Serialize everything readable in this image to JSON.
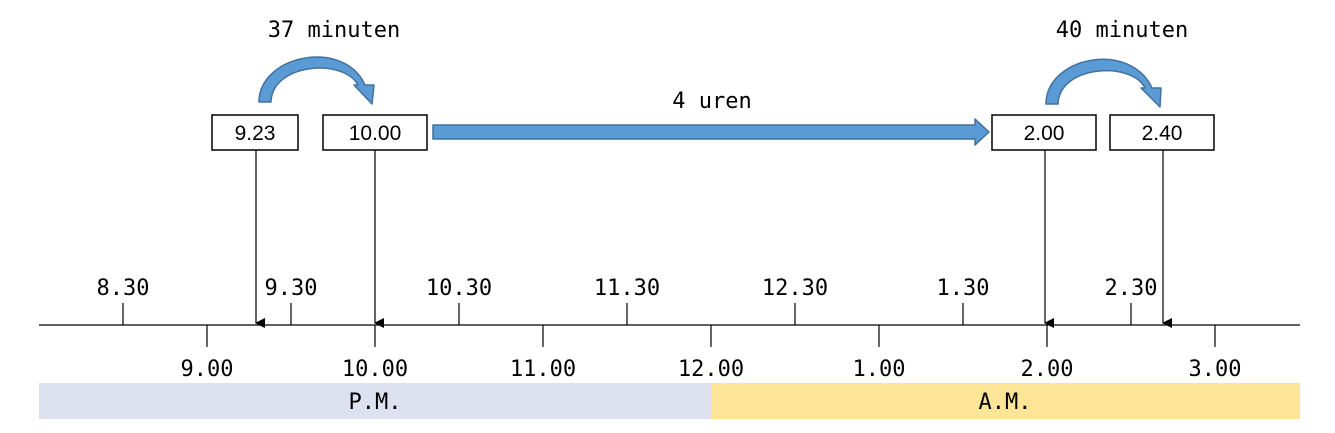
{
  "colors": {
    "pm_band": "#dde1f0",
    "am_band": "#fde597",
    "arrow_fill": "#5b9bd5",
    "arrow_stroke": "#41719c"
  },
  "arrows": {
    "left_label": "37 minuten",
    "middle_label": "4 uren",
    "right_label": "40 minuten"
  },
  "boxes": {
    "b1": "9.23",
    "b2": "10.00",
    "b3": "2.00",
    "b4": "2.40"
  },
  "ticks_upper": [
    "8.30",
    "9.30",
    "10.30",
    "11.30",
    "12.30",
    "1.30",
    "2.30"
  ],
  "ticks_lower": [
    "9.00",
    "10.00",
    "11.00",
    "12.00",
    "1.00",
    "2.00",
    "3.00"
  ],
  "bands": {
    "pm_label": "P.M.",
    "am_label": "A.M."
  }
}
